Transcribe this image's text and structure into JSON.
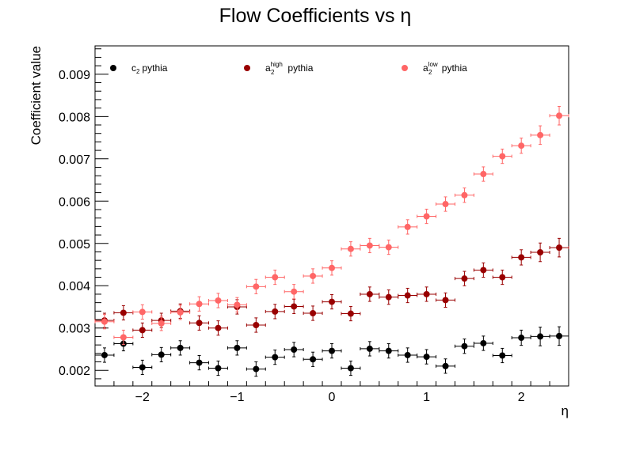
{
  "chart_data": {
    "type": "scatter",
    "title": "Flow Coefficients vs η",
    "xlabel": "η",
    "ylabel": "Coefficient value",
    "xlim": [
      -2.5,
      2.5
    ],
    "ylim": [
      0.00163,
      0.00967
    ],
    "x_ticks": [
      -2,
      -1,
      0,
      1,
      2
    ],
    "x_tick_labels": [
      "−2",
      "−1",
      "0",
      "1",
      "2"
    ],
    "y_ticks": [
      0.002,
      0.003,
      0.004,
      0.005,
      0.006,
      0.007,
      0.008,
      0.009
    ],
    "y_tick_labels": [
      "0.002",
      "0.003",
      "0.004",
      "0.005",
      "0.006",
      "0.007",
      "0.008",
      "0.009"
    ],
    "grid": false,
    "legend_position": "top",
    "x": [
      -2.4,
      -2.2,
      -2.0,
      -1.8,
      -1.6,
      -1.4,
      -1.2,
      -1.0,
      -0.8,
      -0.6,
      -0.4,
      -0.2,
      0.0,
      0.2,
      0.4,
      0.6,
      0.8,
      1.0,
      1.2,
      1.4,
      1.6,
      1.8,
      2.0,
      2.2,
      2.4
    ],
    "x_error": 0.1,
    "series": [
      {
        "name": "c2 pythia",
        "legend_base": "c",
        "legend_sub": "2",
        "legend_sup": "",
        "legend_suffix": "pythia",
        "color": "#000000",
        "values": [
          0.00236,
          0.00263,
          0.00207,
          0.00237,
          0.00253,
          0.00218,
          0.00205,
          0.00253,
          0.00203,
          0.00231,
          0.00249,
          0.00226,
          0.00246,
          0.00205,
          0.00251,
          0.00246,
          0.00236,
          0.00232,
          0.0021,
          0.00257,
          0.00264,
          0.00235,
          0.00277,
          0.0028,
          0.00281
        ],
        "errors": [
          0.00017,
          0.00017,
          0.00017,
          0.00017,
          0.00017,
          0.00017,
          0.00017,
          0.00017,
          0.00017,
          0.00017,
          0.00017,
          0.00017,
          0.00017,
          0.00017,
          0.00017,
          0.00017,
          0.00017,
          0.00017,
          0.00017,
          0.00017,
          0.00017,
          0.00017,
          0.00018,
          0.00022,
          0.00022
        ]
      },
      {
        "name": "a2high pythia",
        "legend_base": "a",
        "legend_sub": "2",
        "legend_sup": "high",
        "legend_suffix": "pythia",
        "color": "#990000",
        "values": [
          0.00318,
          0.00336,
          0.00295,
          0.00318,
          0.0034,
          0.00312,
          0.003,
          0.0035,
          0.00307,
          0.00339,
          0.00351,
          0.00335,
          0.00362,
          0.00334,
          0.0038,
          0.00373,
          0.00377,
          0.0038,
          0.00366,
          0.00417,
          0.00437,
          0.0042,
          0.00467,
          0.00479,
          0.0049
        ],
        "errors": [
          0.00017,
          0.00017,
          0.00017,
          0.00017,
          0.00017,
          0.00017,
          0.00017,
          0.00017,
          0.00017,
          0.00017,
          0.00017,
          0.00017,
          0.00017,
          0.00017,
          0.00017,
          0.00017,
          0.00017,
          0.00017,
          0.00017,
          0.00017,
          0.00017,
          0.00017,
          0.00018,
          0.00022,
          0.00022
        ]
      },
      {
        "name": "a2low pythia",
        "legend_base": "a",
        "legend_sub": "2",
        "legend_sup": "low",
        "legend_suffix": "pythia",
        "color": "#ff6666",
        "values": [
          0.00315,
          0.00278,
          0.00338,
          0.00311,
          0.00337,
          0.00357,
          0.00365,
          0.00355,
          0.00398,
          0.0042,
          0.00386,
          0.00423,
          0.00442,
          0.00487,
          0.00495,
          0.00491,
          0.00539,
          0.00564,
          0.00593,
          0.00614,
          0.00664,
          0.00706,
          0.00731,
          0.00756,
          0.00802
        ],
        "errors": [
          0.00017,
          0.00017,
          0.00017,
          0.00017,
          0.00017,
          0.00017,
          0.00017,
          0.00017,
          0.00017,
          0.00017,
          0.00017,
          0.00017,
          0.00017,
          0.00017,
          0.00017,
          0.00017,
          0.00017,
          0.00017,
          0.00017,
          0.00017,
          0.00017,
          0.00017,
          0.00018,
          0.00022,
          0.00022
        ]
      }
    ]
  }
}
